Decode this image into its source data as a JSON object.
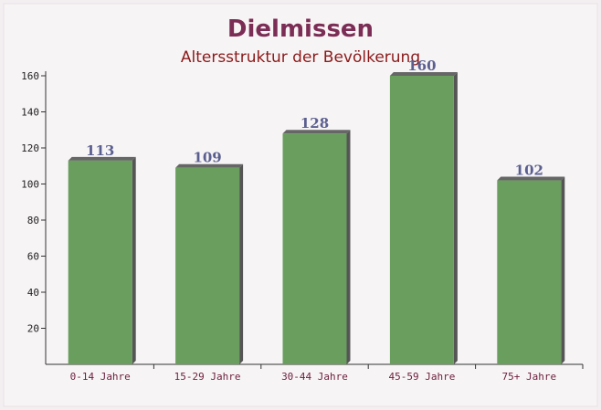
{
  "chart_data": {
    "type": "bar",
    "title": "Dielmissen",
    "subtitle": "Altersstruktur der Bevölkerung",
    "categories": [
      "0-14 Jahre",
      "15-29 Jahre",
      "30-44 Jahre",
      "45-59 Jahre",
      "75+ Jahre"
    ],
    "values": [
      113,
      109,
      128,
      160,
      102
    ],
    "color": "#6a9e5e",
    "ylim": [
      0,
      160
    ],
    "yticks": [
      20,
      40,
      60,
      80,
      100,
      120,
      140,
      160
    ]
  }
}
